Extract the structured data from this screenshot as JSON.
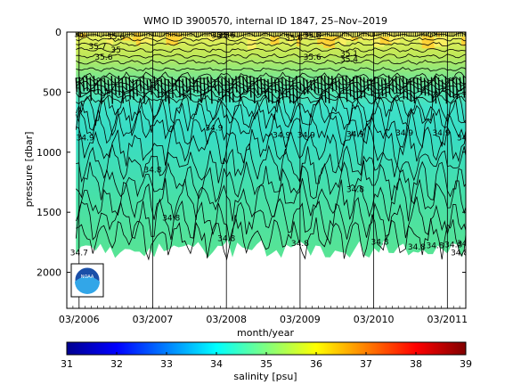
{
  "chart_data": {
    "type": "heatmap",
    "title": "WMO ID 3900570, internal ID 1847, 25–Nov–2019",
    "xlabel": "month/year",
    "ylabel": "pressure [dbar]",
    "x_tick_labels": [
      "03/2006",
      "03/2007",
      "03/2008",
      "03/2009",
      "03/2010",
      "03/2011"
    ],
    "x_range": [
      "01/2006",
      "06/2011"
    ],
    "y_ticks": [
      0,
      500,
      1000,
      1500,
      2000
    ],
    "y_range": [
      0,
      2300
    ],
    "y_reversed": true,
    "colorbar": {
      "label": "salinity [psu]",
      "ticks": [
        31,
        32,
        33,
        34,
        35,
        36,
        37,
        38,
        39
      ],
      "range": [
        31,
        39
      ],
      "colormap": "jet"
    },
    "contour_labels": [
      {
        "text": "35",
        "date": "03/2006",
        "p": 40
      },
      {
        "text": "35.6",
        "date": "09/2006",
        "p": 60
      },
      {
        "text": "35.7",
        "date": "06/2006",
        "p": 140
      },
      {
        "text": "35",
        "date": "09/2006",
        "p": 170
      },
      {
        "text": "35.6",
        "date": "07/2006",
        "p": 230
      },
      {
        "text": "35.8",
        "date": "02/2008",
        "p": 50
      },
      {
        "text": "35.6",
        "date": "03/2008",
        "p": 50
      },
      {
        "text": "35.6",
        "date": "02/2009",
        "p": 70
      },
      {
        "text": "35.8",
        "date": "05/2009",
        "p": 50
      },
      {
        "text": "35.6",
        "date": "05/2009",
        "p": 230
      },
      {
        "text": "35.1",
        "date": "11/2009",
        "p": 200
      },
      {
        "text": "35.4",
        "date": "11/2009",
        "p": 250
      },
      {
        "text": "35.6",
        "date": "12/2010",
        "p": 20
      },
      {
        "text": "34.9",
        "date": "04/2006",
        "p": 900
      },
      {
        "text": "34.9",
        "date": "01/2008",
        "p": 820
      },
      {
        "text": "34.9",
        "date": "12/2008",
        "p": 880
      },
      {
        "text": "34.9",
        "date": "04/2009",
        "p": 880
      },
      {
        "text": "34.9",
        "date": "12/2009",
        "p": 870
      },
      {
        "text": "34.9",
        "date": "08/2010",
        "p": 860
      },
      {
        "text": "34.9",
        "date": "02/2011",
        "p": 860
      },
      {
        "text": "34.9",
        "date": "06/2011",
        "p": 900
      },
      {
        "text": "34.8",
        "date": "03/2007",
        "p": 1170
      },
      {
        "text": "34.8",
        "date": "06/2007",
        "p": 1570
      },
      {
        "text": "34.7",
        "date": "03/2006",
        "p": 1860
      },
      {
        "text": "34.8",
        "date": "03/2008",
        "p": 1740
      },
      {
        "text": "34.8",
        "date": "03/2009",
        "p": 1780
      },
      {
        "text": "34.8",
        "date": "12/2009",
        "p": 1330
      },
      {
        "text": "34.8",
        "date": "04/2010",
        "p": 1770
      },
      {
        "text": "34.8",
        "date": "10/2010",
        "p": 1810
      },
      {
        "text": "34.8",
        "date": "01/2011",
        "p": 1800
      },
      {
        "text": "34.8",
        "date": "04/2011",
        "p": 1790
      },
      {
        "text": "34.9",
        "date": "06/2011",
        "p": 1780
      },
      {
        "text": "34.8",
        "date": "05/2011",
        "p": 1860
      }
    ]
  },
  "logo": {
    "text": "NOAA"
  }
}
